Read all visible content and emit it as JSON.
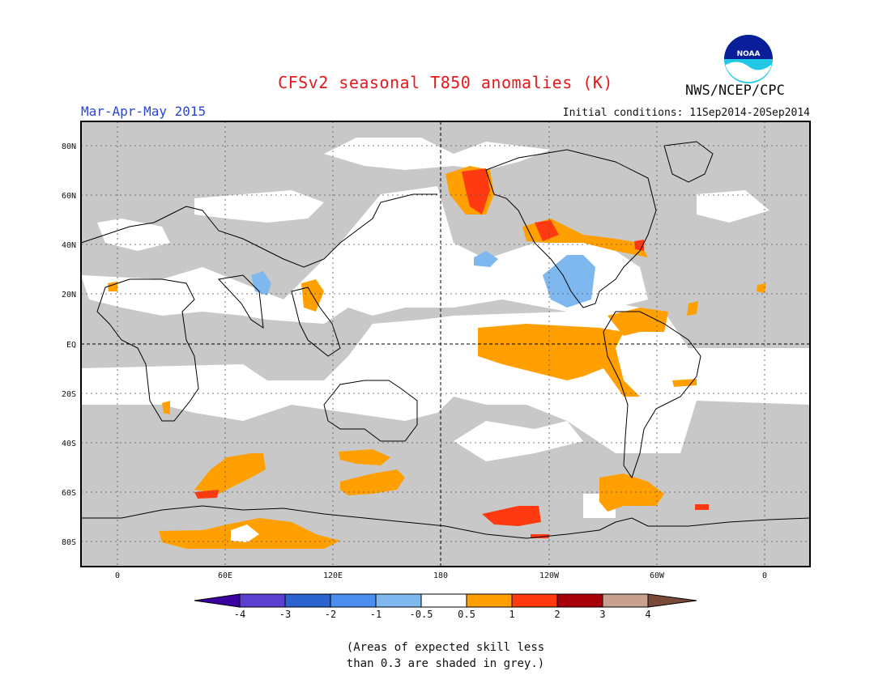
{
  "header": {
    "title": "CFSv2 seasonal T850 anomalies (K)",
    "season": "Mar-Apr-May 2015",
    "initial_conditions": "Initial conditions: 11Sep2014-20Sep2014",
    "agency": "NWS/NCEP/CPC",
    "logo_text": "NOAA"
  },
  "axes": {
    "lat_labels": [
      "80N",
      "60N",
      "40N",
      "20N",
      "EQ",
      "20S",
      "40S",
      "60S",
      "80S"
    ],
    "lon_labels": [
      "0",
      "60E",
      "120E",
      "180",
      "120W",
      "60W",
      "0"
    ]
  },
  "colorbar": {
    "labels": [
      "-4",
      "-3",
      "-2",
      "-1",
      "-0.5",
      "0.5",
      "1",
      "2",
      "3",
      "4"
    ],
    "colors": [
      "#3a00a0",
      "#5a3fd0",
      "#2a62d0",
      "#4a8ff0",
      "#7fb8ee",
      "#ffffff",
      "#ff9f00",
      "#ff3a10",
      "#a8000a",
      "#c8a090",
      "#7a4a38"
    ]
  },
  "note": {
    "line1": "(Areas of expected skill less",
    "line2": "than 0.3 are shaded in grey.)"
  }
}
